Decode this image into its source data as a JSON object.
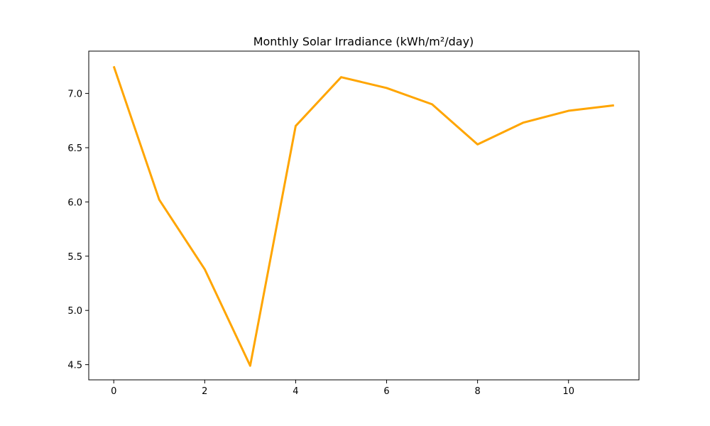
{
  "chart_data": {
    "type": "line",
    "title": "Monthly Solar Irradiance (kWh/m²/day)",
    "xlabel": "",
    "ylabel": "",
    "x": [
      0,
      1,
      2,
      3,
      4,
      5,
      6,
      7,
      8,
      9,
      10,
      11
    ],
    "series": [
      {
        "values": [
          7.25,
          6.02,
          5.38,
          4.49,
          6.7,
          7.15,
          7.05,
          6.9,
          6.53,
          6.73,
          6.84,
          6.89
        ],
        "color": "#ffa500"
      }
    ],
    "xlim": [
      -0.55,
      11.55
    ],
    "ylim": [
      4.36,
      7.39
    ],
    "xticks": [
      0,
      2,
      4,
      6,
      8,
      10
    ],
    "xtick_labels": [
      "0",
      "2",
      "4",
      "6",
      "8",
      "10"
    ],
    "yticks": [
      4.5,
      5.0,
      5.5,
      6.0,
      6.5,
      7.0
    ],
    "ytick_labels": [
      "4.5",
      "5.0",
      "5.5",
      "6.0",
      "6.5",
      "7.0"
    ],
    "grid": false,
    "legend": "none"
  }
}
